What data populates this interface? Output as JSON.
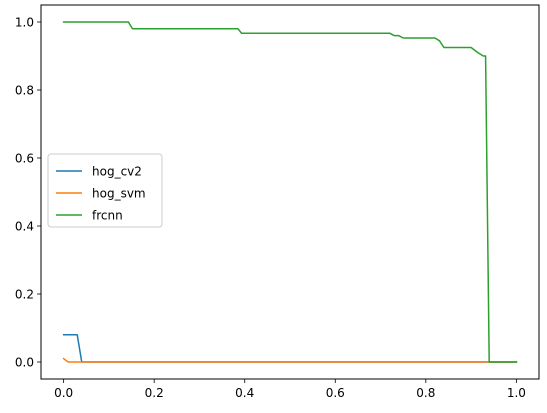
{
  "chart_data": {
    "type": "line",
    "title": "",
    "xlabel": "",
    "ylabel": "",
    "xlim": [
      -0.05,
      1.05
    ],
    "ylim": [
      -0.05,
      1.05
    ],
    "xticks": [
      0.0,
      0.2,
      0.4,
      0.6,
      0.8,
      1.0
    ],
    "xtick_labels": [
      "0.0",
      "0.2",
      "0.4",
      "0.6",
      "0.8",
      "1.0"
    ],
    "yticks": [
      0.0,
      0.2,
      0.4,
      0.6,
      0.8,
      1.0
    ],
    "ytick_labels": [
      "0.0",
      "0.2",
      "0.4",
      "0.6",
      "0.8",
      "1.0"
    ],
    "grid": false,
    "legend_position": "center-left",
    "series": [
      {
        "name": "hog_cv2",
        "color": "#1f77b4",
        "points": [
          [
            0.0,
            0.08
          ],
          [
            0.03,
            0.08
          ],
          [
            0.04,
            0.0
          ],
          [
            1.0,
            0.0
          ]
        ]
      },
      {
        "name": "hog_svm",
        "color": "#ff7f0e",
        "points": [
          [
            0.0,
            0.01
          ],
          [
            0.01,
            0.0
          ],
          [
            1.0,
            0.0
          ]
        ]
      },
      {
        "name": "frcnn",
        "color": "#2ca02c",
        "points": [
          [
            0.0,
            1.0
          ],
          [
            0.143,
            1.0
          ],
          [
            0.152,
            0.98
          ],
          [
            0.385,
            0.98
          ],
          [
            0.393,
            0.967
          ],
          [
            0.72,
            0.967
          ],
          [
            0.73,
            0.96
          ],
          [
            0.74,
            0.96
          ],
          [
            0.75,
            0.953
          ],
          [
            0.82,
            0.953
          ],
          [
            0.83,
            0.945
          ],
          [
            0.84,
            0.925
          ],
          [
            0.9,
            0.925
          ],
          [
            0.915,
            0.91
          ],
          [
            0.927,
            0.9
          ],
          [
            0.932,
            0.9
          ],
          [
            0.94,
            0.0
          ],
          [
            1.0,
            0.0
          ]
        ]
      }
    ]
  }
}
